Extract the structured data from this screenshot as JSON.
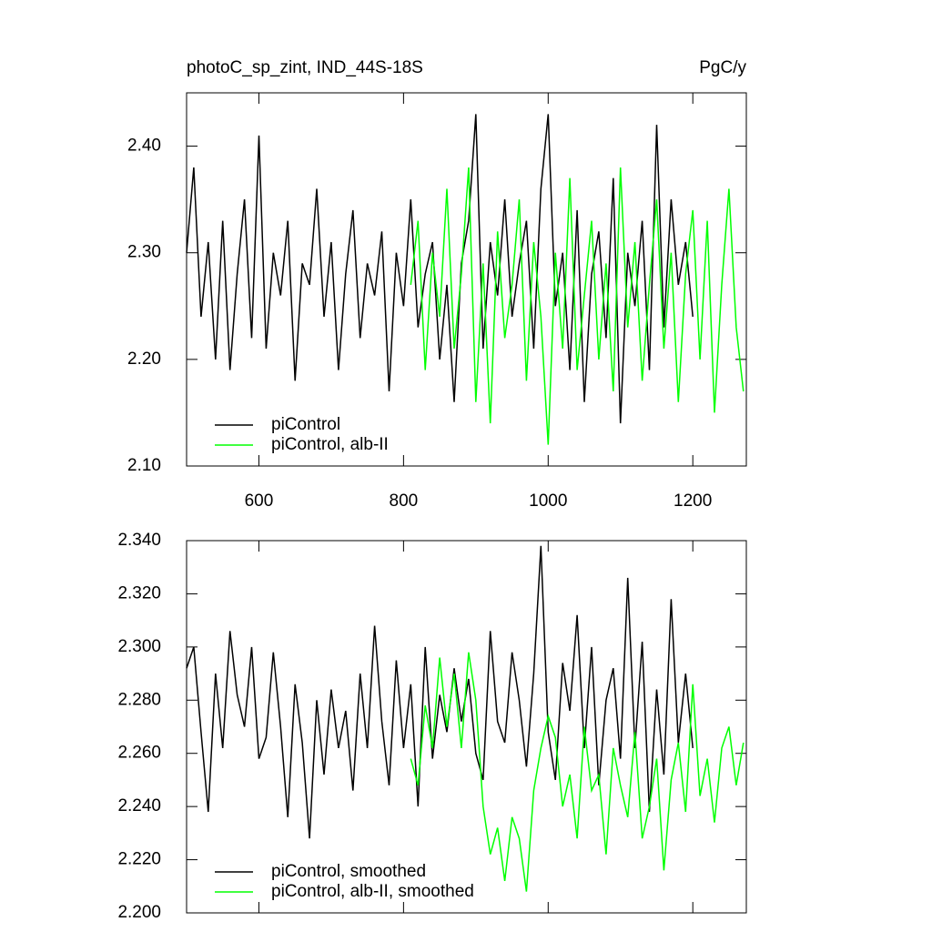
{
  "chart_data": [
    {
      "type": "line",
      "title": "photoC_sp_zint, IND_44S-18S",
      "units": "PgC/y",
      "x": [
        500,
        510,
        520,
        530,
        540,
        550,
        560,
        570,
        580,
        590,
        600,
        610,
        620,
        630,
        640,
        650,
        660,
        670,
        680,
        690,
        700,
        710,
        720,
        730,
        740,
        750,
        760,
        770,
        780,
        790,
        800,
        810,
        820,
        830,
        840,
        850,
        860,
        870,
        880,
        890,
        900,
        910,
        920,
        930,
        940,
        950,
        960,
        970,
        980,
        990,
        1000,
        1010,
        1020,
        1030,
        1040,
        1050,
        1060,
        1070,
        1080,
        1090,
        1100,
        1110,
        1120,
        1130,
        1140,
        1150,
        1160,
        1170,
        1180,
        1190,
        1200,
        1210,
        1220,
        1230,
        1240,
        1250,
        1260,
        1270
      ],
      "series": [
        {
          "name": "piControl",
          "color": "#000000",
          "values": [
            2.3,
            2.38,
            2.24,
            2.31,
            2.2,
            2.33,
            2.19,
            2.28,
            2.35,
            2.22,
            2.41,
            2.21,
            2.3,
            2.26,
            2.33,
            2.18,
            2.29,
            2.27,
            2.36,
            2.24,
            2.31,
            2.19,
            2.28,
            2.34,
            2.22,
            2.29,
            2.26,
            2.32,
            2.17,
            2.3,
            2.25,
            2.35,
            2.23,
            2.28,
            2.31,
            2.2,
            2.27,
            2.16,
            2.29,
            2.33,
            2.43,
            2.21,
            2.31,
            2.26,
            2.35,
            2.24,
            2.29,
            2.33,
            2.21,
            2.36,
            2.43,
            2.25,
            2.3,
            2.19,
            2.34,
            2.16,
            2.28,
            2.32,
            2.22,
            2.37,
            2.14,
            2.3,
            2.25,
            2.33,
            2.19,
            2.42,
            2.23,
            2.35,
            2.27,
            2.31,
            2.24,
            null,
            null,
            null,
            null,
            null,
            null,
            null
          ]
        },
        {
          "name": "piControl, alb-II",
          "color": "#00ff00",
          "values": [
            null,
            null,
            null,
            null,
            null,
            null,
            null,
            null,
            null,
            null,
            null,
            null,
            null,
            null,
            null,
            null,
            null,
            null,
            null,
            null,
            null,
            null,
            null,
            null,
            null,
            null,
            null,
            null,
            null,
            null,
            null,
            2.27,
            2.33,
            2.19,
            2.3,
            2.24,
            2.36,
            2.21,
            2.28,
            2.38,
            2.16,
            2.29,
            2.14,
            2.32,
            2.22,
            2.27,
            2.35,
            2.18,
            2.31,
            2.24,
            2.12,
            2.3,
            2.21,
            2.37,
            2.19,
            2.26,
            2.33,
            2.2,
            2.29,
            2.17,
            2.38,
            2.23,
            2.31,
            2.18,
            2.27,
            2.35,
            2.21,
            2.3,
            2.16,
            2.28,
            2.34,
            2.2,
            2.33,
            2.15,
            2.27,
            2.36,
            2.23,
            2.17
          ]
        }
      ],
      "xlim": [
        500,
        1274
      ],
      "ylim": [
        2.1,
        2.45
      ],
      "xticks": [
        600,
        800,
        1000,
        1200
      ],
      "yticks": [
        {
          "value": 2.1,
          "label": "2.10"
        },
        {
          "value": 2.2,
          "label": "2.20"
        },
        {
          "value": 2.3,
          "label": "2.30"
        },
        {
          "value": 2.4,
          "label": "2.40"
        }
      ],
      "legend": "lower left"
    },
    {
      "type": "line",
      "x": [
        500,
        510,
        520,
        530,
        540,
        550,
        560,
        570,
        580,
        590,
        600,
        610,
        620,
        630,
        640,
        650,
        660,
        670,
        680,
        690,
        700,
        710,
        720,
        730,
        740,
        750,
        760,
        770,
        780,
        790,
        800,
        810,
        820,
        830,
        840,
        850,
        860,
        870,
        880,
        890,
        900,
        910,
        920,
        930,
        940,
        950,
        960,
        970,
        980,
        990,
        1000,
        1010,
        1020,
        1030,
        1040,
        1050,
        1060,
        1070,
        1080,
        1090,
        1100,
        1110,
        1120,
        1130,
        1140,
        1150,
        1160,
        1170,
        1180,
        1190,
        1200,
        1210,
        1220,
        1230,
        1240,
        1250,
        1260,
        1270
      ],
      "series": [
        {
          "name": "piControl, smoothed",
          "color": "#000000",
          "values": [
            2.292,
            2.3,
            2.268,
            2.238,
            2.29,
            2.262,
            2.306,
            2.282,
            2.27,
            2.3,
            2.258,
            2.266,
            2.298,
            2.27,
            2.236,
            2.286,
            2.264,
            2.228,
            2.28,
            2.252,
            2.284,
            2.262,
            2.276,
            2.246,
            2.29,
            2.262,
            2.308,
            2.272,
            2.248,
            2.295,
            2.262,
            2.286,
            2.24,
            2.3,
            2.258,
            2.282,
            2.268,
            2.292,
            2.272,
            2.288,
            2.26,
            2.25,
            2.306,
            2.272,
            2.264,
            2.298,
            2.28,
            2.255,
            2.29,
            2.338,
            2.268,
            2.25,
            2.294,
            2.276,
            2.312,
            2.262,
            2.3,
            2.248,
            2.28,
            2.292,
            2.258,
            2.326,
            2.262,
            2.302,
            2.238,
            2.284,
            2.252,
            2.318,
            2.264,
            2.29,
            2.262,
            null,
            null,
            null,
            null,
            null,
            null,
            null
          ]
        },
        {
          "name": "piControl, alb-II, smoothed",
          "color": "#00ff00",
          "values": [
            null,
            null,
            null,
            null,
            null,
            null,
            null,
            null,
            null,
            null,
            null,
            null,
            null,
            null,
            null,
            null,
            null,
            null,
            null,
            null,
            null,
            null,
            null,
            null,
            null,
            null,
            null,
            null,
            null,
            null,
            null,
            2.258,
            2.248,
            2.278,
            2.262,
            2.296,
            2.27,
            2.29,
            2.262,
            2.298,
            2.28,
            2.24,
            2.222,
            2.232,
            2.212,
            2.236,
            2.228,
            2.208,
            2.246,
            2.262,
            2.274,
            2.266,
            2.24,
            2.252,
            2.228,
            2.27,
            2.246,
            2.252,
            2.222,
            2.262,
            2.248,
            2.236,
            2.268,
            2.228,
            2.24,
            2.258,
            2.216,
            2.25,
            2.264,
            2.238,
            2.286,
            2.244,
            2.258,
            2.234,
            2.262,
            2.27,
            2.248,
            2.264
          ]
        }
      ],
      "xlim": [
        500,
        1274
      ],
      "ylim": [
        2.2,
        2.34
      ],
      "xticks": [
        600,
        800,
        1000,
        1200
      ],
      "yticks": [
        {
          "value": 2.2,
          "label": "2.200"
        },
        {
          "value": 2.22,
          "label": "2.220"
        },
        {
          "value": 2.24,
          "label": "2.240"
        },
        {
          "value": 2.26,
          "label": "2.260"
        },
        {
          "value": 2.28,
          "label": "2.280"
        },
        {
          "value": 2.3,
          "label": "2.300"
        },
        {
          "value": 2.32,
          "label": "2.320"
        },
        {
          "value": 2.34,
          "label": "2.340"
        }
      ],
      "legend": "lower left"
    }
  ]
}
